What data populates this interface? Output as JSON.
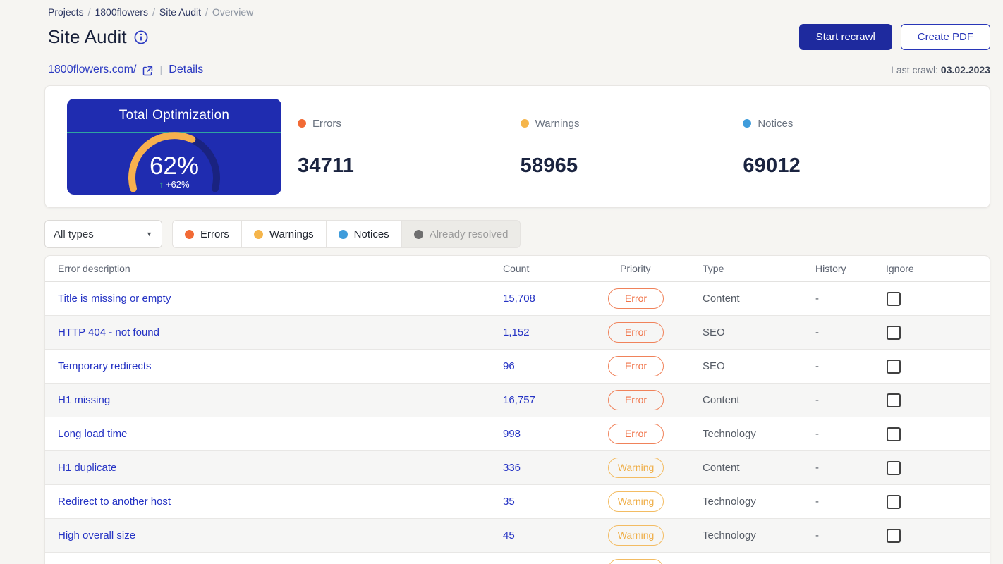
{
  "breadcrumb": {
    "separator": "/",
    "links": [
      "Projects",
      "1800flowers",
      "Site Audit"
    ],
    "current": "Overview"
  },
  "header": {
    "title": "Site Audit",
    "start_recrawl_label": "Start recrawl",
    "create_pdf_label": "Create PDF"
  },
  "site": {
    "domain": "1800flowers.com/",
    "details_label": "Details",
    "last_crawl_label": "Last crawl:",
    "last_crawl_date": "03.02.2023"
  },
  "overview": {
    "gauge": {
      "title": "Total Optimization",
      "percent_label": "62%",
      "percent_value": 62,
      "delta_label": "+62%",
      "bg_color": "#1f2cb0",
      "arc_color": "#f7b04e",
      "arc_track_color": "#1a2380",
      "divider_color": "#2fa3a0",
      "delta_arrow_color": "#3bb384",
      "delta_arrow": "↑"
    },
    "stats": [
      {
        "label": "Errors",
        "value": "34711",
        "color": "#f26a35"
      },
      {
        "label": "Warnings",
        "value": "58965",
        "color": "#f5b54a"
      },
      {
        "label": "Notices",
        "value": "69012",
        "color": "#3f9cdb"
      }
    ]
  },
  "filters": {
    "type_dropdown_value": "All types",
    "dropdown_caret": "▼",
    "tabs": [
      {
        "label": "Errors",
        "color": "#f26a35",
        "active": true
      },
      {
        "label": "Warnings",
        "color": "#f5b54a",
        "active": true
      },
      {
        "label": "Notices",
        "color": "#3f9cdb",
        "active": true
      },
      {
        "label": "Already resolved",
        "color": "#6f6f6f",
        "active": false
      }
    ]
  },
  "table": {
    "columns": [
      "Error description",
      "Count",
      "Priority",
      "Type",
      "History",
      "Ignore"
    ],
    "rows": [
      {
        "description": "Title is missing or empty",
        "count": "15,708",
        "priority": "Error",
        "type": "Content",
        "history": "-",
        "ignored": false
      },
      {
        "description": "HTTP 404 - not found",
        "count": "1,152",
        "priority": "Error",
        "type": "SEO",
        "history": "-",
        "ignored": false
      },
      {
        "description": "Temporary redirects",
        "count": "96",
        "priority": "Error",
        "type": "SEO",
        "history": "-",
        "ignored": false
      },
      {
        "description": "H1 missing",
        "count": "16,757",
        "priority": "Error",
        "type": "Content",
        "history": "-",
        "ignored": false
      },
      {
        "description": "Long load time",
        "count": "998",
        "priority": "Error",
        "type": "Technology",
        "history": "-",
        "ignored": false
      },
      {
        "description": "H1 duplicate",
        "count": "336",
        "priority": "Warning",
        "type": "Content",
        "history": "-",
        "ignored": false
      },
      {
        "description": "Redirect to another host",
        "count": "35",
        "priority": "Warning",
        "type": "Technology",
        "history": "-",
        "ignored": false
      },
      {
        "description": "High overall size",
        "count": "45",
        "priority": "Warning",
        "type": "Technology",
        "history": "-",
        "ignored": false
      },
      {
        "description": "",
        "count": "",
        "priority": "Warning",
        "type": "",
        "history": "",
        "ignored": false
      }
    ]
  }
}
